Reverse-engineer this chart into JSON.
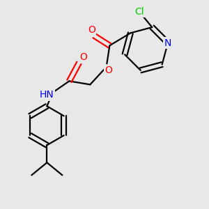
{
  "bg_color": "#e8e8e8",
  "bond_color": "#000000",
  "n_color": "#0000ff",
  "o_color": "#ff0000",
  "cl_color": "#00cc00",
  "line_width": 1.6,
  "fig_size": [
    3.0,
    3.0
  ],
  "dpi": 100,
  "xlim": [
    0,
    300
  ],
  "ylim": [
    0,
    300
  ]
}
